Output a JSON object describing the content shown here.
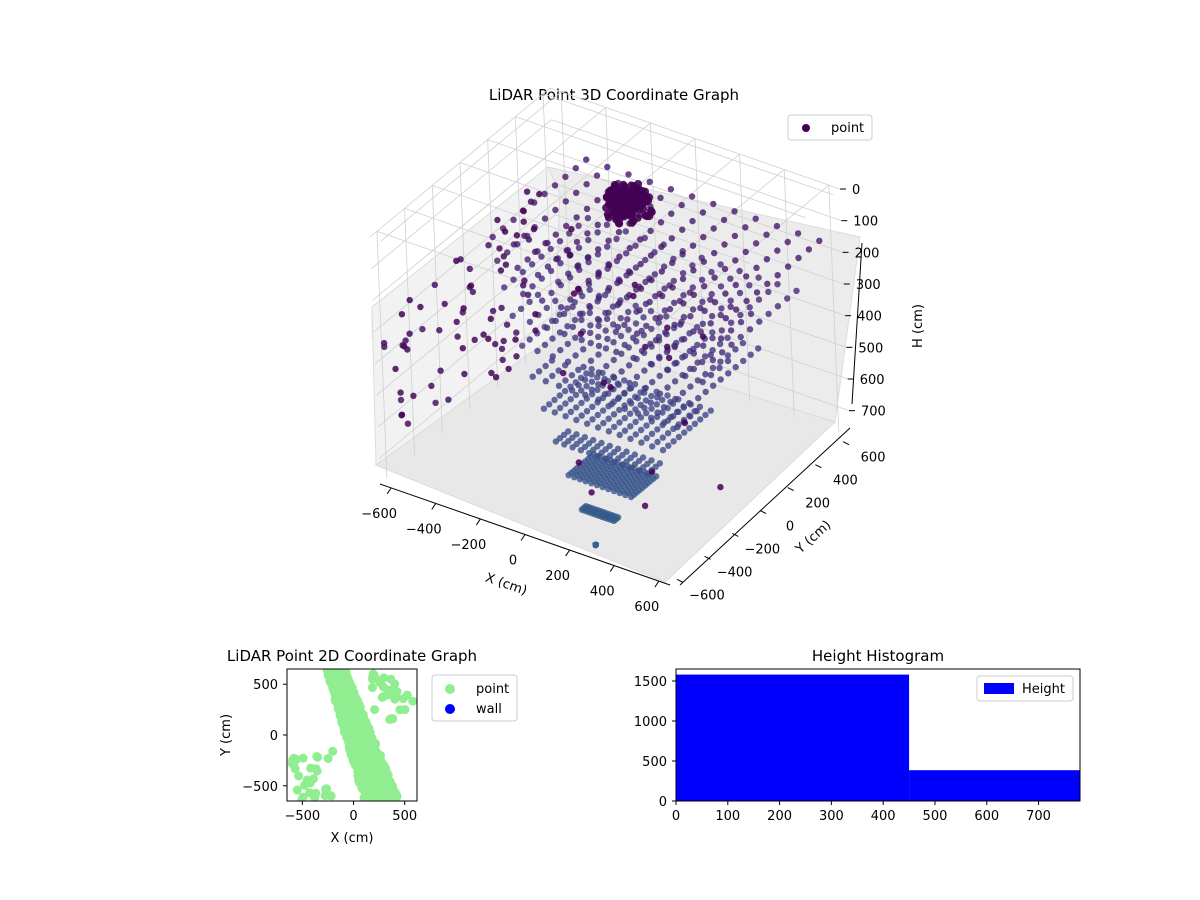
{
  "chart_data": [
    {
      "type": "scatter",
      "projection": "3d",
      "title": "LiDAR Point 3D Coordinate Graph",
      "xlabel": "X (cm)",
      "ylabel": "Y (cm)",
      "zlabel": "H (cm)",
      "x_ticks": [
        "−600",
        "−400",
        "−200",
        "0",
        "200",
        "400",
        "600"
      ],
      "y_ticks": [
        "−600",
        "−400",
        "−200",
        "0",
        "200",
        "400",
        "600"
      ],
      "z_ticks": [
        "0",
        "100",
        "200",
        "300",
        "400",
        "500",
        "600",
        "700"
      ],
      "xlim": [
        -650,
        650
      ],
      "ylim": [
        -650,
        650
      ],
      "zlim": [
        0,
        780
      ],
      "z_inverted": true,
      "grid": true,
      "legend": {
        "entries": [
          {
            "label": "point",
            "color": "#440154"
          }
        ],
        "placement": "top-right"
      },
      "colormap": "viridis",
      "description_of_data": "Fan of points spreading upward from a floor cluster near (300,-600) toward a grid of ceiling points; dense dark cluster near ceiling around (-300,500,200); wall points along x=-600"
    },
    {
      "type": "scatter",
      "title": "LiDAR Point 2D Coordinate Graph",
      "xlabel": "X (cm)",
      "ylabel": "Y (cm)",
      "x_ticks": [
        "−500",
        "0",
        "500"
      ],
      "y_ticks": [
        "−500",
        "0",
        "500"
      ],
      "xlim": [
        -650,
        620
      ],
      "ylim": [
        -650,
        650
      ],
      "series": [
        {
          "name": "point",
          "color": "#90ee90"
        },
        {
          "name": "wall",
          "color": "#0000ff"
        }
      ],
      "legend_placement": "outside-right"
    },
    {
      "type": "bar",
      "title": "Height Histogram",
      "xlabel": "",
      "ylabel": "",
      "bins": [
        [
          0,
          450
        ],
        [
          450,
          780
        ]
      ],
      "values": [
        1580,
        385
      ],
      "x_ticks": [
        "0",
        "100",
        "200",
        "300",
        "400",
        "500",
        "600",
        "700"
      ],
      "y_ticks": [
        "0",
        "500",
        "1000",
        "1500"
      ],
      "xlim": [
        0,
        780
      ],
      "ylim": [
        0,
        1650
      ],
      "series": [
        {
          "name": "Height",
          "color": "#0000ff"
        }
      ],
      "legend_placement": "top-right"
    }
  ]
}
